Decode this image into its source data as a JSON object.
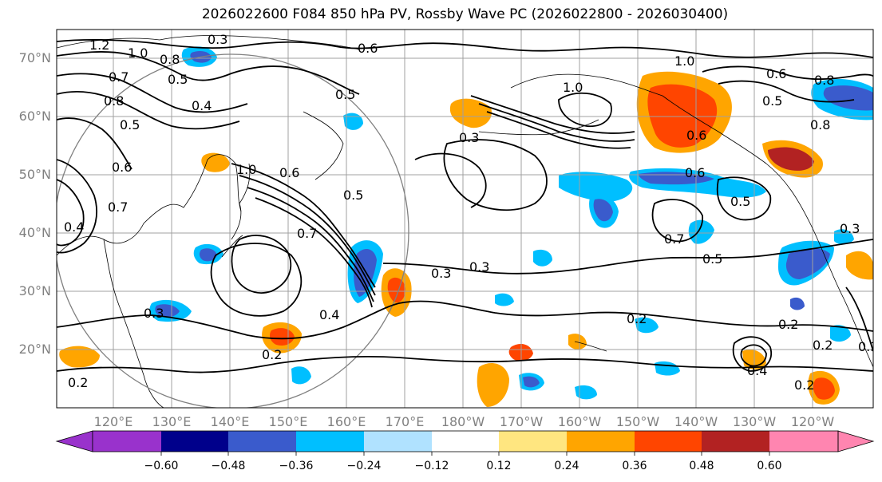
{
  "title": "2026022600 F084 850 hPa PV, Rossby Wave PC (2026022800 - 2026030400)",
  "lat_labels": [
    "70°N",
    "60°N",
    "50°N",
    "40°N",
    "30°N",
    "20°N"
  ],
  "lon_labels": [
    "120°E",
    "130°E",
    "140°E",
    "150°E",
    "160°E",
    "170°E",
    "180°W",
    "170°W",
    "160°W",
    "150°W",
    "140°W",
    "130°W",
    "120°W"
  ],
  "colorbar": {
    "ticks": [
      "−0.60",
      "−0.48",
      "−0.36",
      "−0.24",
      "−0.12",
      "0.12",
      "0.24",
      "0.36",
      "0.48",
      "0.60"
    ],
    "colors": [
      "#9932cc",
      "#00008b",
      "#3a5bcc",
      "#00bfff",
      "#b0e2ff",
      "#ffffff",
      "#ffe680",
      "#ffa500",
      "#ff4500",
      "#b22222",
      "#ff85b0"
    ]
  },
  "contour_labels": [
    "1.2",
    "1.0",
    "0.8",
    "0.7",
    "0.6",
    "0.5",
    "0.4",
    "0.3",
    "0.2",
    "0.3",
    "0.6",
    "0.5",
    "1.0",
    "0.6",
    "0.8",
    "0.5",
    "0.7",
    "0.4",
    "0.3",
    "0.2",
    "0.2",
    "0.3",
    "0.5",
    "0.8",
    "0.6",
    "0.4",
    "0.3",
    "0.2",
    "0.6",
    "0.2",
    "0.3",
    "0.5"
  ],
  "colors": {
    "grid": "#a0a0a0",
    "contour": "#000000",
    "coast": "#000000",
    "circle": "#808080"
  }
}
